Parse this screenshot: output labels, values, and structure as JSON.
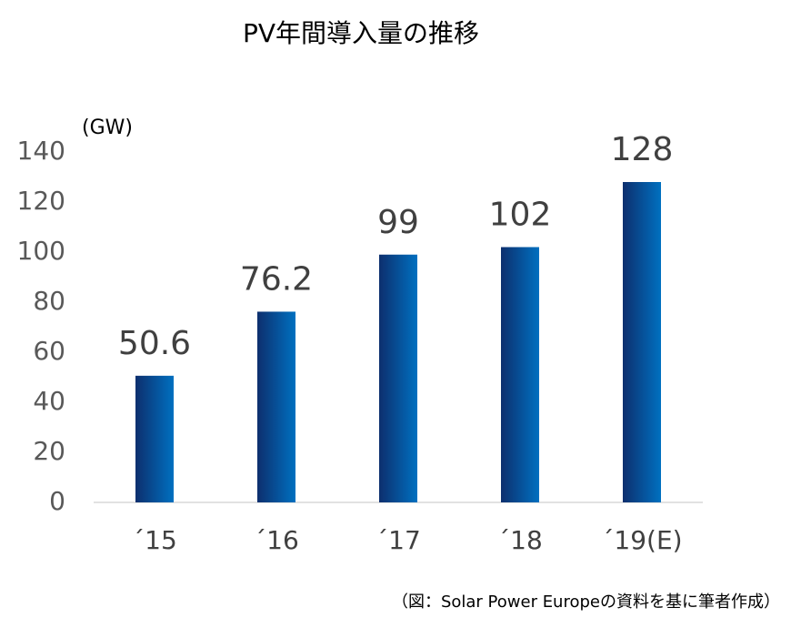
{
  "chart_data": {
    "type": "bar",
    "title": "PV年間導入量の推移",
    "y_label": "(GW)",
    "categories": [
      "´15",
      "´16",
      "´17",
      "´18",
      "´19(E)"
    ],
    "values": [
      50.6,
      76.2,
      99,
      102,
      128
    ],
    "color": "#0070c0",
    "ylim": [
      0,
      140
    ],
    "yticks": [
      0,
      20,
      40,
      60,
      80,
      100,
      120,
      140
    ],
    "grid": false,
    "note": "（図：Solar Power Europeの資料を基に筆者作成）"
  }
}
